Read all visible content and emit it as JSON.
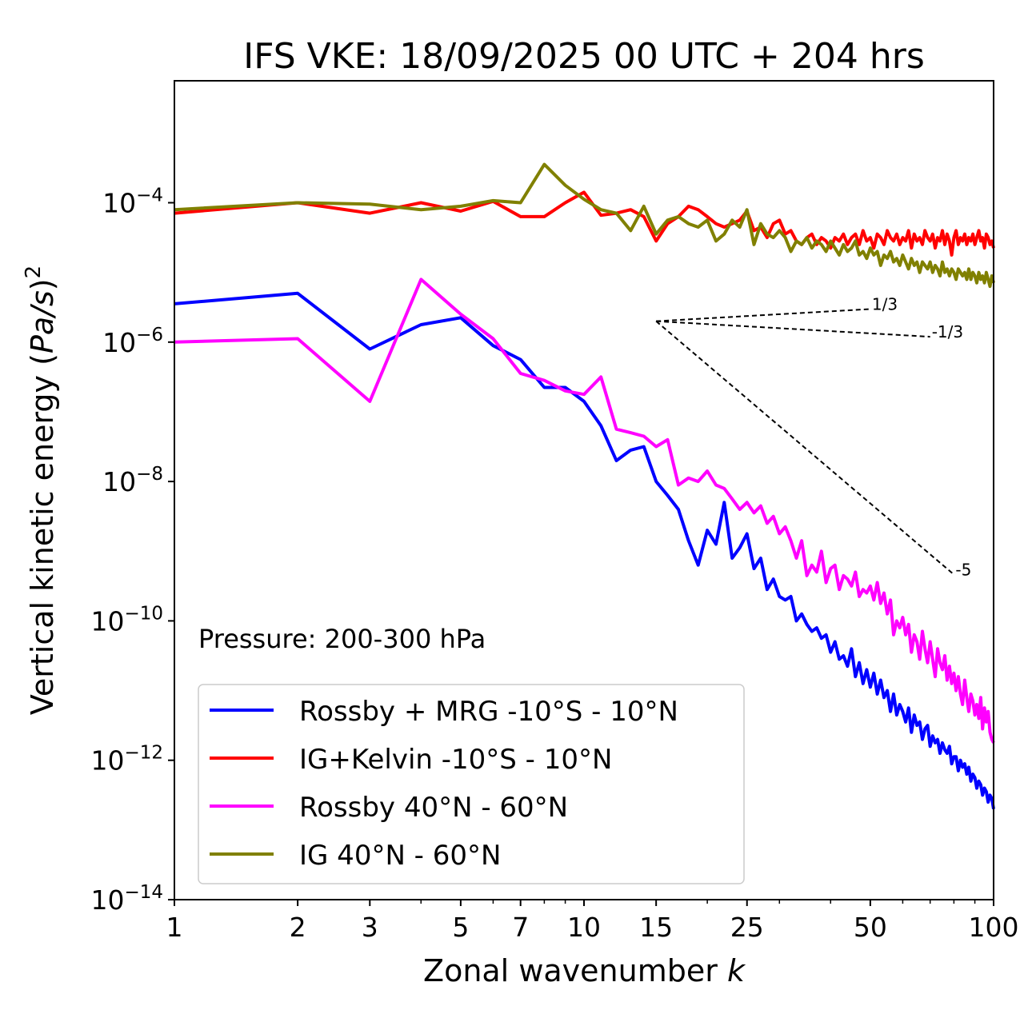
{
  "chart_data": {
    "type": "line",
    "title": "IFS VKE: 18/09/2025 00 UTC + 204 hrs",
    "xlabel": "Zonal wavenumber",
    "xlabel_var": "k",
    "ylabel_prefix": "Vertical kinetic energy (",
    "ylabel_var": "Pa/s",
    "ylabel_suffix": ")",
    "ylabel_exp": "2",
    "xscale": "log",
    "yscale": "log",
    "xlim": [
      1,
      100
    ],
    "ylim_exp": [
      -14,
      -2.25
    ],
    "xticks": [
      1,
      2,
      3,
      5,
      7,
      10,
      15,
      25,
      50,
      100
    ],
    "xtick_labels": [
      "1",
      "2",
      "3",
      "5",
      "7",
      "10",
      "15",
      "25",
      "50",
      "100"
    ],
    "ytick_exps": [
      -14,
      -12,
      -10,
      -8,
      -6,
      -4
    ],
    "ytick_base": "10",
    "ytick_exp_labels": [
      "−14",
      "−12",
      "−10",
      "−8",
      "−6",
      "−4"
    ],
    "annotation": "Pressure: 200-300 hPa",
    "legend_position": "lower-left",
    "reference_slopes": {
      "origin": {
        "k": 15,
        "value_exp": -5.7
      },
      "lines": [
        {
          "slope": "1/3",
          "label": "1/3",
          "slope_value": 0.3333,
          "k_end": 50
        },
        {
          "slope": "-1/3",
          "label": "-1/3",
          "slope_value": -0.3333,
          "k_end": 70
        },
        {
          "slope": "-5",
          "label": "-5",
          "slope_value": -5,
          "k_end": 80
        }
      ]
    },
    "series": [
      {
        "name": "Rossby + MRG -10°S - 10°N",
        "color": "#0000ff",
        "exp_values": [
          -5.45,
          -5.3,
          -6.1,
          -5.75,
          -5.65,
          -6.05,
          -6.25,
          -6.65,
          -6.65,
          -6.85,
          -7.2,
          -7.7,
          -7.55,
          -7.5,
          -8.0,
          -8.2,
          -8.4,
          -8.85,
          -9.2,
          -8.7,
          -8.9,
          -8.3,
          -9.1,
          -8.95,
          -8.75,
          -9.25,
          -9.1,
          -9.55,
          -9.4,
          -9.65,
          -9.7,
          -9.65,
          -10.0,
          -9.9,
          -10.05,
          -10.15,
          -10.1,
          -10.25,
          -10.2,
          -10.45,
          -10.3,
          -10.55,
          -10.5,
          -10.65,
          -10.4,
          -10.8,
          -10.6,
          -10.9,
          -10.7,
          -10.95,
          -10.75,
          -11.05,
          -10.85,
          -11.1,
          -11.0,
          -11.3,
          -11.05,
          -11.35,
          -11.2,
          -11.3,
          -11.45,
          -11.25,
          -11.6,
          -11.35,
          -11.5,
          -11.45,
          -11.7,
          -11.55,
          -11.5,
          -11.8,
          -11.65,
          -11.75,
          -11.7,
          -11.9,
          -11.75,
          -11.85,
          -11.9,
          -11.8,
          -12.05,
          -11.95,
          -11.95,
          -12.15,
          -12.0,
          -12.1,
          -12.05,
          -12.2,
          -12.1,
          -12.3,
          -12.2,
          -12.25,
          -12.4,
          -12.3,
          -12.35,
          -12.5,
          -12.4,
          -12.45,
          -12.6,
          -12.5,
          -12.55,
          -12.7
        ],
        "x": [
          1,
          2,
          3,
          4,
          5,
          6,
          7,
          8,
          9,
          10,
          11,
          12,
          13,
          14,
          15,
          16,
          17,
          18,
          19,
          20,
          21,
          22,
          23,
          24,
          25,
          26,
          27,
          28,
          29,
          30,
          31,
          32,
          33,
          34,
          35,
          36,
          37,
          38,
          39,
          40,
          41,
          42,
          43,
          44,
          45,
          46,
          47,
          48,
          49,
          50,
          51,
          52,
          53,
          54,
          55,
          56,
          57,
          58,
          59,
          60,
          61,
          62,
          63,
          64,
          65,
          66,
          67,
          68,
          69,
          70,
          71,
          72,
          73,
          74,
          75,
          76,
          77,
          78,
          79,
          80,
          81,
          82,
          83,
          84,
          85,
          86,
          87,
          88,
          89,
          90,
          91,
          92,
          93,
          94,
          95,
          96,
          97,
          98,
          99,
          100
        ]
      },
      {
        "name": "IG+Kelvin -10°S - 10°N",
        "color": "#ff0000",
        "exp_values": [
          -4.15,
          -4.0,
          -4.15,
          -4.0,
          -4.12,
          -3.98,
          -4.2,
          -4.2,
          -4.0,
          -3.85,
          -4.18,
          -4.15,
          -4.1,
          -4.2,
          -4.55,
          -4.3,
          -4.2,
          -4.05,
          -4.1,
          -4.2,
          -4.3,
          -4.35,
          -4.3,
          -4.25,
          -4.12,
          -4.4,
          -4.35,
          -4.5,
          -4.3,
          -4.25,
          -4.45,
          -4.4,
          -4.55,
          -4.6,
          -4.5,
          -4.45,
          -4.6,
          -4.5,
          -4.55,
          -4.65,
          -4.5,
          -4.55,
          -4.45,
          -4.6,
          -4.5,
          -4.45,
          -4.6,
          -4.4,
          -4.55,
          -4.5,
          -4.65,
          -4.45,
          -4.5,
          -4.6,
          -4.4,
          -4.5,
          -4.55,
          -4.45,
          -4.6,
          -4.5,
          -4.55,
          -4.4,
          -4.65,
          -4.45,
          -4.55,
          -4.5,
          -4.6,
          -4.4,
          -4.5,
          -4.55,
          -4.45,
          -4.65,
          -4.5,
          -4.55,
          -4.4,
          -4.6,
          -4.45,
          -4.55,
          -4.75,
          -4.5,
          -4.4,
          -4.6,
          -4.5,
          -4.55,
          -4.45,
          -4.6,
          -4.5,
          -4.55,
          -4.45,
          -4.6,
          -4.5,
          -4.4,
          -4.55,
          -4.5,
          -4.65,
          -4.45,
          -4.5,
          -4.6,
          -4.55,
          -4.65
        ],
        "x": [
          1,
          2,
          3,
          4,
          5,
          6,
          7,
          8,
          9,
          10,
          11,
          12,
          13,
          14,
          15,
          16,
          17,
          18,
          19,
          20,
          21,
          22,
          23,
          24,
          25,
          26,
          27,
          28,
          29,
          30,
          31,
          32,
          33,
          34,
          35,
          36,
          37,
          38,
          39,
          40,
          41,
          42,
          43,
          44,
          45,
          46,
          47,
          48,
          49,
          50,
          51,
          52,
          53,
          54,
          55,
          56,
          57,
          58,
          59,
          60,
          61,
          62,
          63,
          64,
          65,
          66,
          67,
          68,
          69,
          70,
          71,
          72,
          73,
          74,
          75,
          76,
          77,
          78,
          79,
          80,
          81,
          82,
          83,
          84,
          85,
          86,
          87,
          88,
          89,
          90,
          91,
          92,
          93,
          94,
          95,
          96,
          97,
          98,
          99,
          100
        ]
      },
      {
        "name": "Rossby 40°N - 60°N",
        "color": "#ff00ff",
        "exp_values": [
          -6.0,
          -5.95,
          -6.85,
          -5.1,
          -5.6,
          -5.95,
          -6.45,
          -6.55,
          -6.7,
          -6.75,
          -6.5,
          -7.25,
          -7.3,
          -7.35,
          -7.5,
          -7.4,
          -8.05,
          -7.95,
          -8.0,
          -7.85,
          -8.05,
          -8.1,
          -8.25,
          -8.4,
          -8.3,
          -8.45,
          -8.35,
          -8.6,
          -8.5,
          -8.75,
          -8.65,
          -8.85,
          -9.1,
          -8.85,
          -9.35,
          -9.2,
          -9.3,
          -9.0,
          -9.45,
          -9.25,
          -9.2,
          -9.55,
          -9.35,
          -9.4,
          -9.5,
          -9.3,
          -9.65,
          -9.55,
          -9.6,
          -9.5,
          -9.7,
          -9.45,
          -9.75,
          -9.6,
          -9.9,
          -9.7,
          -10.2,
          -10.0,
          -10.1,
          -9.95,
          -10.2,
          -10.05,
          -10.45,
          -10.2,
          -10.3,
          -10.55,
          -10.15,
          -10.4,
          -10.6,
          -10.3,
          -10.55,
          -10.8,
          -10.4,
          -10.6,
          -10.7,
          -10.5,
          -10.85,
          -10.65,
          -10.9,
          -10.75,
          -11.0,
          -10.8,
          -11.05,
          -11.2,
          -10.85,
          -11.1,
          -11.3,
          -11.05,
          -11.15,
          -11.35,
          -11.2,
          -11.4,
          -11.1,
          -11.55,
          -11.25,
          -11.45,
          -11.3,
          -11.6,
          -11.7,
          -11.75
        ],
        "x": [
          1,
          2,
          3,
          4,
          5,
          6,
          7,
          8,
          9,
          10,
          11,
          12,
          13,
          14,
          15,
          16,
          17,
          18,
          19,
          20,
          21,
          22,
          23,
          24,
          25,
          26,
          27,
          28,
          29,
          30,
          31,
          32,
          33,
          34,
          35,
          36,
          37,
          38,
          39,
          40,
          41,
          42,
          43,
          44,
          45,
          46,
          47,
          48,
          49,
          50,
          51,
          52,
          53,
          54,
          55,
          56,
          57,
          58,
          59,
          60,
          61,
          62,
          63,
          64,
          65,
          66,
          67,
          68,
          69,
          70,
          71,
          72,
          73,
          74,
          75,
          76,
          77,
          78,
          79,
          80,
          81,
          82,
          83,
          84,
          85,
          86,
          87,
          88,
          89,
          90,
          91,
          92,
          93,
          94,
          95,
          96,
          97,
          98,
          99,
          100
        ]
      },
      {
        "name": "IG 40°N - 60°N",
        "color": "#808000",
        "exp_values": [
          -4.1,
          -4.0,
          -4.02,
          -4.1,
          -4.05,
          -3.97,
          -4.0,
          -3.45,
          -3.75,
          -3.95,
          -4.1,
          -4.15,
          -4.4,
          -4.05,
          -4.45,
          -4.25,
          -4.2,
          -4.3,
          -4.35,
          -4.25,
          -4.55,
          -4.45,
          -4.25,
          -4.35,
          -4.1,
          -4.6,
          -4.3,
          -4.45,
          -4.5,
          -4.4,
          -4.5,
          -4.7,
          -4.55,
          -4.6,
          -4.5,
          -4.65,
          -4.55,
          -4.6,
          -4.7,
          -4.55,
          -4.65,
          -4.75,
          -4.6,
          -4.7,
          -4.65,
          -4.55,
          -4.75,
          -4.7,
          -4.8,
          -4.65,
          -4.75,
          -4.7,
          -4.9,
          -4.75,
          -4.8,
          -4.7,
          -4.85,
          -4.8,
          -4.9,
          -4.75,
          -4.85,
          -4.95,
          -4.8,
          -4.9,
          -4.85,
          -5.0,
          -4.85,
          -4.9,
          -4.95,
          -4.85,
          -5.0,
          -4.9,
          -4.95,
          -5.05,
          -4.85,
          -5.0,
          -4.95,
          -5.05,
          -4.95,
          -5.0,
          -5.1,
          -4.95,
          -5.0,
          -5.05,
          -5.0,
          -5.1,
          -4.95,
          -5.1,
          -5.0,
          -5.05,
          -5.15,
          -5.0,
          -5.1,
          -5.05,
          -5.15,
          -5.0,
          -5.1,
          -5.2,
          -5.05,
          -5.15
        ],
        "x": [
          1,
          2,
          3,
          4,
          5,
          6,
          7,
          8,
          9,
          10,
          11,
          12,
          13,
          14,
          15,
          16,
          17,
          18,
          19,
          20,
          21,
          22,
          23,
          24,
          25,
          26,
          27,
          28,
          29,
          30,
          31,
          32,
          33,
          34,
          35,
          36,
          37,
          38,
          39,
          40,
          41,
          42,
          43,
          44,
          45,
          46,
          47,
          48,
          49,
          50,
          51,
          52,
          53,
          54,
          55,
          56,
          57,
          58,
          59,
          60,
          61,
          62,
          63,
          64,
          65,
          66,
          67,
          68,
          69,
          70,
          71,
          72,
          73,
          74,
          75,
          76,
          77,
          78,
          79,
          80,
          81,
          82,
          83,
          84,
          85,
          86,
          87,
          88,
          89,
          90,
          91,
          92,
          93,
          94,
          95,
          96,
          97,
          98,
          99,
          100
        ]
      }
    ]
  }
}
